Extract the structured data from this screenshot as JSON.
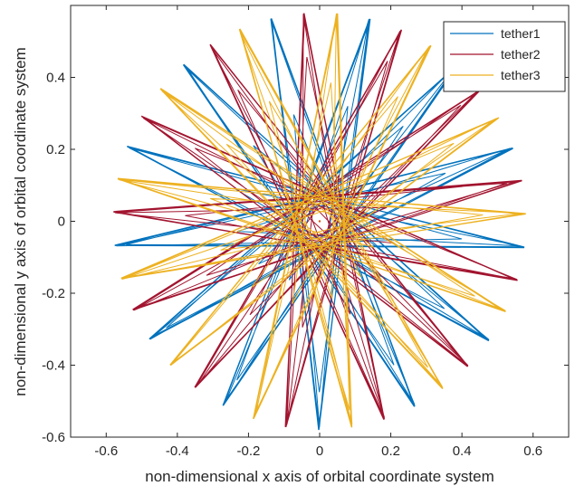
{
  "chart_data": {
    "type": "line",
    "xlabel": "non-dimensional x axis of  orbital coordinate system",
    "ylabel": "non-dimensional y axis of  orbital coordinate system",
    "xlim": [
      -0.7,
      0.7
    ],
    "ylim": [
      -0.6,
      0.6
    ],
    "xticks": [
      -0.6,
      -0.4,
      -0.2,
      0,
      0.2,
      0.4,
      0.6
    ],
    "xtick_labels": [
      "-0.6",
      "-0.4",
      "-0.2",
      "0",
      "0.2",
      "0.4",
      "0.6"
    ],
    "yticks": [
      -0.6,
      -0.4,
      -0.2,
      0,
      0.2,
      0.4
    ],
    "ytick_labels": [
      "-0.6",
      "-0.4",
      "-0.2",
      "0",
      "0.2",
      "0.4"
    ],
    "grid": false,
    "legend": "top-right",
    "center_point": {
      "x": 0.0,
      "y": 0.0,
      "color": "#d95319"
    },
    "series": [
      {
        "name": "tether1",
        "color": "#0072bd",
        "trajectory": "star polygon, successive vertices approx. 166 deg apart",
        "inner_radius_start": 0.16,
        "inner_radius_growth": 0.42,
        "outer_radius": 0.58,
        "start_angle_deg": -90,
        "vertex_step_deg": 166.15,
        "vertex_count": 104
      },
      {
        "name": "tether2",
        "color": "#a2142f",
        "trajectory": "star polygon, successive vertices approx. 166 deg apart",
        "inner_radius_start": 0.06,
        "inner_radius_growth": 0.46,
        "outer_radius": 0.58,
        "start_angle_deg": 150,
        "vertex_step_deg": 166.15,
        "vertex_count": 104
      },
      {
        "name": "tether3",
        "color": "#edb120",
        "trajectory": "star polygon, successive vertices approx. 166 deg apart",
        "inner_radius_start": 0.12,
        "inner_radius_growth": 0.42,
        "outer_radius": 0.58,
        "start_angle_deg": 30,
        "vertex_step_deg": 166.15,
        "vertex_count": 104
      }
    ]
  }
}
